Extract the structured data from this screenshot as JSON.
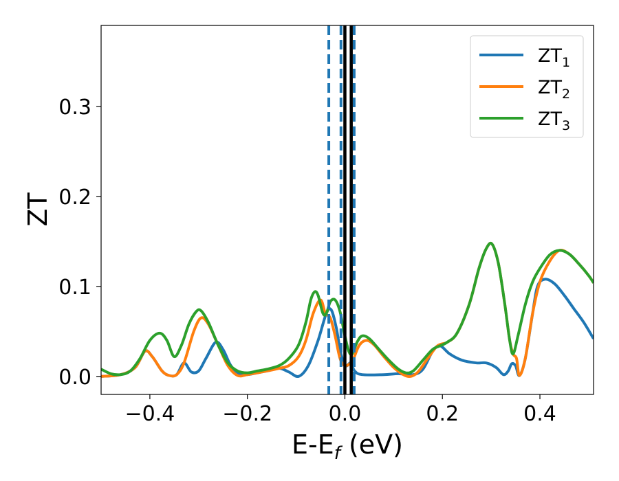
{
  "chart_data": {
    "type": "line",
    "xlabel": "E-E",
    "xlabel_sub": "f",
    "xlabel_unit": " (eV)",
    "ylabel": "ZT",
    "xlim": [
      -0.5,
      0.51
    ],
    "ylim": [
      -0.02,
      0.39
    ],
    "xticks": [
      -0.4,
      -0.2,
      0.0,
      0.2,
      0.4
    ],
    "xtick_labels": [
      "−0.4",
      "−0.2",
      "0.0",
      "0.2",
      "0.4"
    ],
    "yticks": [
      0.0,
      0.1,
      0.2,
      0.3
    ],
    "ytick_labels": [
      "0.0",
      "0.1",
      "0.2",
      "0.3"
    ],
    "grid": false,
    "legend_position": "top-right",
    "vlines": [
      {
        "x": -0.033,
        "style": "dashed",
        "color": "#1f77b4"
      },
      {
        "x": -0.008,
        "style": "dashed",
        "color": "#1f77b4"
      },
      {
        "x": 0.019,
        "style": "dashed",
        "color": "#1f77b4"
      },
      {
        "x": 0.0,
        "style": "solid",
        "color": "#000000"
      },
      {
        "x": 0.013,
        "style": "solid",
        "color": "#000000"
      }
    ],
    "series": [
      {
        "name": "ZT",
        "sub": "1",
        "color": "#1f77b4",
        "points": [
          [
            -0.5,
            0.0
          ],
          [
            -0.46,
            0.002
          ],
          [
            -0.43,
            0.01
          ],
          [
            -0.41,
            0.028
          ],
          [
            -0.395,
            0.022
          ],
          [
            -0.375,
            0.006
          ],
          [
            -0.36,
            0.001
          ],
          [
            -0.345,
            0.002
          ],
          [
            -0.33,
            0.015
          ],
          [
            -0.315,
            0.005
          ],
          [
            -0.3,
            0.006
          ],
          [
            -0.285,
            0.02
          ],
          [
            -0.265,
            0.038
          ],
          [
            -0.25,
            0.03
          ],
          [
            -0.235,
            0.013
          ],
          [
            -0.22,
            0.004
          ],
          [
            -0.2,
            0.002
          ],
          [
            -0.18,
            0.004
          ],
          [
            -0.16,
            0.006
          ],
          [
            -0.135,
            0.009
          ],
          [
            -0.115,
            0.005
          ],
          [
            -0.095,
            0.0
          ],
          [
            -0.075,
            0.012
          ],
          [
            -0.055,
            0.04
          ],
          [
            -0.038,
            0.07
          ],
          [
            -0.028,
            0.074
          ],
          [
            -0.018,
            0.055
          ],
          [
            -0.008,
            0.025
          ],
          [
            0.002,
            0.012
          ],
          [
            0.012,
            0.015
          ],
          [
            0.02,
            0.006
          ],
          [
            0.035,
            0.002
          ],
          [
            0.08,
            0.002
          ],
          [
            0.11,
            0.003
          ],
          [
            0.14,
            0.002
          ],
          [
            0.16,
            0.008
          ],
          [
            0.18,
            0.028
          ],
          [
            0.195,
            0.034
          ],
          [
            0.215,
            0.025
          ],
          [
            0.24,
            0.018
          ],
          [
            0.27,
            0.015
          ],
          [
            0.29,
            0.015
          ],
          [
            0.31,
            0.01
          ],
          [
            0.325,
            0.002
          ],
          [
            0.335,
            0.006
          ],
          [
            0.342,
            0.014
          ],
          [
            0.35,
            0.012
          ],
          [
            0.358,
            0.001
          ],
          [
            0.37,
            0.02
          ],
          [
            0.385,
            0.07
          ],
          [
            0.395,
            0.1
          ],
          [
            0.41,
            0.108
          ],
          [
            0.43,
            0.103
          ],
          [
            0.45,
            0.09
          ],
          [
            0.47,
            0.075
          ],
          [
            0.49,
            0.06
          ],
          [
            0.51,
            0.042
          ]
        ]
      },
      {
        "name": "ZT",
        "sub": "2",
        "color": "#ff7f0e",
        "points": [
          [
            -0.5,
            0.0
          ],
          [
            -0.46,
            0.002
          ],
          [
            -0.43,
            0.01
          ],
          [
            -0.41,
            0.028
          ],
          [
            -0.395,
            0.022
          ],
          [
            -0.375,
            0.006
          ],
          [
            -0.36,
            0.001
          ],
          [
            -0.345,
            0.002
          ],
          [
            -0.33,
            0.015
          ],
          [
            -0.31,
            0.05
          ],
          [
            -0.295,
            0.065
          ],
          [
            -0.28,
            0.058
          ],
          [
            -0.26,
            0.035
          ],
          [
            -0.24,
            0.012
          ],
          [
            -0.22,
            0.001
          ],
          [
            -0.2,
            0.002
          ],
          [
            -0.18,
            0.004
          ],
          [
            -0.16,
            0.006
          ],
          [
            -0.135,
            0.009
          ],
          [
            -0.115,
            0.012
          ],
          [
            -0.095,
            0.022
          ],
          [
            -0.08,
            0.04
          ],
          [
            -0.065,
            0.07
          ],
          [
            -0.05,
            0.085
          ],
          [
            -0.04,
            0.07
          ],
          [
            -0.03,
            0.065
          ],
          [
            -0.02,
            0.045
          ],
          [
            -0.01,
            0.02
          ],
          [
            0.0,
            0.012
          ],
          [
            0.012,
            0.015
          ],
          [
            0.018,
            0.02
          ],
          [
            0.03,
            0.035
          ],
          [
            0.045,
            0.04
          ],
          [
            0.06,
            0.035
          ],
          [
            0.08,
            0.022
          ],
          [
            0.1,
            0.01
          ],
          [
            0.12,
            0.002
          ],
          [
            0.135,
            0.0
          ],
          [
            0.15,
            0.005
          ],
          [
            0.17,
            0.02
          ],
          [
            0.19,
            0.034
          ],
          [
            0.21,
            0.038
          ],
          [
            0.23,
            0.048
          ],
          [
            0.255,
            0.08
          ],
          [
            0.275,
            0.12
          ],
          [
            0.29,
            0.142
          ],
          [
            0.302,
            0.147
          ],
          [
            0.315,
            0.125
          ],
          [
            0.328,
            0.08
          ],
          [
            0.338,
            0.04
          ],
          [
            0.345,
            0.025
          ],
          [
            0.352,
            0.02
          ],
          [
            0.358,
            0.001
          ],
          [
            0.37,
            0.02
          ],
          [
            0.385,
            0.07
          ],
          [
            0.4,
            0.105
          ],
          [
            0.42,
            0.128
          ],
          [
            0.44,
            0.14
          ],
          [
            0.46,
            0.136
          ],
          [
            0.48,
            0.125
          ],
          [
            0.5,
            0.112
          ],
          [
            0.51,
            0.104
          ]
        ]
      },
      {
        "name": "ZT",
        "sub": "3",
        "color": "#2ca02c",
        "points": [
          [
            -0.5,
            0.008
          ],
          [
            -0.48,
            0.003
          ],
          [
            -0.46,
            0.002
          ],
          [
            -0.44,
            0.006
          ],
          [
            -0.42,
            0.02
          ],
          [
            -0.4,
            0.04
          ],
          [
            -0.38,
            0.048
          ],
          [
            -0.365,
            0.04
          ],
          [
            -0.35,
            0.022
          ],
          [
            -0.335,
            0.035
          ],
          [
            -0.32,
            0.058
          ],
          [
            -0.305,
            0.072
          ],
          [
            -0.295,
            0.073
          ],
          [
            -0.28,
            0.06
          ],
          [
            -0.26,
            0.035
          ],
          [
            -0.24,
            0.015
          ],
          [
            -0.22,
            0.006
          ],
          [
            -0.2,
            0.004
          ],
          [
            -0.18,
            0.006
          ],
          [
            -0.16,
            0.008
          ],
          [
            -0.135,
            0.012
          ],
          [
            -0.115,
            0.02
          ],
          [
            -0.095,
            0.035
          ],
          [
            -0.08,
            0.06
          ],
          [
            -0.07,
            0.085
          ],
          [
            -0.062,
            0.094
          ],
          [
            -0.055,
            0.09
          ],
          [
            -0.045,
            0.07
          ],
          [
            -0.038,
            0.07
          ],
          [
            -0.03,
            0.083
          ],
          [
            -0.02,
            0.085
          ],
          [
            -0.01,
            0.072
          ],
          [
            0.0,
            0.045
          ],
          [
            0.008,
            0.028
          ],
          [
            0.015,
            0.025
          ],
          [
            0.025,
            0.038
          ],
          [
            0.035,
            0.045
          ],
          [
            0.05,
            0.042
          ],
          [
            0.07,
            0.03
          ],
          [
            0.09,
            0.018
          ],
          [
            0.11,
            0.008
          ],
          [
            0.125,
            0.004
          ],
          [
            0.14,
            0.006
          ],
          [
            0.16,
            0.018
          ],
          [
            0.18,
            0.03
          ],
          [
            0.195,
            0.034
          ],
          [
            0.21,
            0.038
          ],
          [
            0.23,
            0.048
          ],
          [
            0.255,
            0.08
          ],
          [
            0.275,
            0.12
          ],
          [
            0.29,
            0.142
          ],
          [
            0.302,
            0.147
          ],
          [
            0.315,
            0.125
          ],
          [
            0.328,
            0.08
          ],
          [
            0.338,
            0.04
          ],
          [
            0.345,
            0.025
          ],
          [
            0.355,
            0.045
          ],
          [
            0.37,
            0.08
          ],
          [
            0.385,
            0.105
          ],
          [
            0.4,
            0.12
          ],
          [
            0.42,
            0.135
          ],
          [
            0.44,
            0.14
          ],
          [
            0.46,
            0.136
          ],
          [
            0.48,
            0.125
          ],
          [
            0.5,
            0.112
          ],
          [
            0.51,
            0.104
          ]
        ]
      }
    ]
  }
}
